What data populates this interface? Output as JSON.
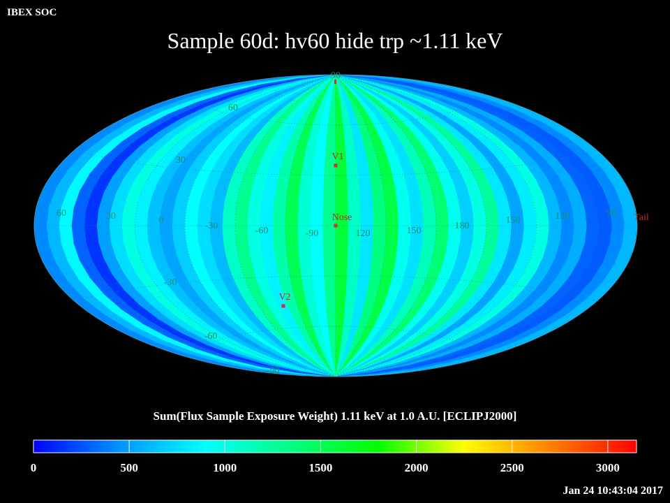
{
  "header": {
    "corner_label": "IBEX SOC",
    "title": "Sample 60d: hv60 hide trp ~1.11 keV"
  },
  "map": {
    "projection": "aitoff",
    "frame": "ECLIPJ2000",
    "longitude_labels": [
      "60",
      "30",
      "0",
      "-30",
      "-60",
      "-90",
      "120",
      "150",
      "180",
      "150",
      "120",
      "90"
    ],
    "latitude_labels": {
      "north": [
        "90",
        "60",
        "30"
      ],
      "south": [
        "-30",
        "-60",
        "-90"
      ]
    },
    "markers": [
      {
        "name": "V1",
        "label": "V1"
      },
      {
        "name": "Nose",
        "label": "Nose"
      },
      {
        "name": "V2",
        "label": "V2"
      },
      {
        "name": "Tail",
        "label": "Tail"
      }
    ]
  },
  "colorbar": {
    "title": "Sum(Flux Sample Exposure Weight)  1.11 keV at 1.0 A.U. [ECLIPJ2000]",
    "ticks": [
      "0",
      "500",
      "1000",
      "1500",
      "2000",
      "2500",
      "3000"
    ],
    "range": [
      0,
      3150
    ],
    "colors": [
      "#0000ff",
      "#0094ff",
      "#00ffff",
      "#00ff80",
      "#00ff00",
      "#ffff00",
      "#ff8000",
      "#ff0000"
    ]
  },
  "footer": {
    "timestamp": "Jan 24 10:43:04 2017"
  },
  "chart_data": {
    "type": "heatmap",
    "title": "Sample 60d: hv60 hide trp ~1.11 keV",
    "colorbar_label": "Sum(Flux Sample Exposure Weight)  1.11 keV at 1.0 A.U. [ECLIPJ2000]",
    "value_range": [
      0,
      3150
    ],
    "colorbar_ticks": [
      0,
      500,
      1000,
      1500,
      2000,
      2500,
      3000
    ],
    "band_values": [
      420,
      600,
      880,
      300,
      160,
      500,
      760,
      1000,
      850,
      640,
      520,
      700,
      900,
      760,
      620,
      1100,
      1300,
      1000,
      850,
      1200,
      1500,
      1050,
      900,
      1300,
      1600,
      1100,
      800,
      1350,
      1550,
      950,
      780,
      1150,
      1400,
      950,
      700,
      1000,
      1250,
      800,
      520,
      820,
      1000,
      600,
      420,
      560,
      300,
      280,
      420,
      600
    ]
  }
}
